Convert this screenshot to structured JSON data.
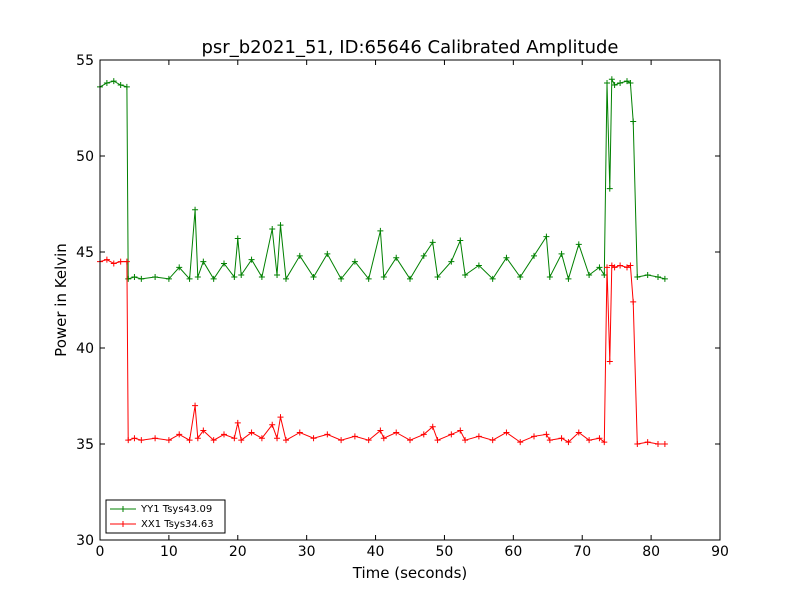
{
  "chart_data": {
    "type": "line",
    "title": "psr_b2021_51, ID:65646 Calibrated Amplitude",
    "xlabel": "Time (seconds)",
    "ylabel": "Power in Kelvin",
    "xlim": [
      0,
      90
    ],
    "ylim": [
      30,
      55
    ],
    "xticks": [
      0,
      10,
      20,
      30,
      40,
      50,
      60,
      70,
      80,
      90
    ],
    "yticks": [
      30,
      35,
      40,
      45,
      50,
      55
    ],
    "grid": false,
    "legend_position": "bottom-left",
    "marker": "+",
    "series": [
      {
        "name": "YY1 Tsys43.09",
        "color": "#008000",
        "x": [
          0,
          1,
          2,
          3,
          3.9,
          4.1,
          5,
          6,
          8,
          10,
          11.5,
          13,
          13.8,
          14.2,
          15,
          16.5,
          18,
          19.5,
          20,
          20.5,
          22,
          23.5,
          25,
          25.7,
          26.2,
          27,
          29,
          31,
          33,
          35,
          37,
          39,
          40.7,
          41.2,
          43,
          45,
          47,
          48.3,
          49,
          51,
          52.3,
          53,
          55,
          57,
          59,
          61,
          63,
          64.8,
          65.3,
          67,
          68,
          69.5,
          71,
          72.5,
          73.2,
          73.6,
          74.0,
          74.3,
          74.7,
          75.5,
          76.5,
          77.0,
          77.4,
          78,
          79.5,
          81,
          82
        ],
        "values": [
          53.6,
          53.8,
          53.9,
          53.7,
          53.6,
          43.6,
          43.7,
          43.6,
          43.7,
          43.6,
          44.2,
          43.6,
          47.2,
          43.7,
          44.5,
          43.6,
          44.4,
          43.7,
          45.7,
          43.8,
          44.6,
          43.7,
          46.2,
          43.8,
          46.4,
          43.6,
          44.8,
          43.7,
          44.9,
          43.6,
          44.5,
          43.6,
          46.1,
          43.7,
          44.7,
          43.6,
          44.8,
          45.5,
          43.7,
          44.5,
          45.6,
          43.8,
          44.3,
          43.6,
          44.7,
          43.7,
          44.8,
          45.8,
          43.7,
          44.9,
          43.6,
          45.4,
          43.8,
          44.2,
          43.8,
          53.8,
          48.3,
          54.0,
          53.7,
          53.8,
          53.9,
          53.8,
          51.8,
          43.7,
          43.8,
          43.7,
          43.6
        ]
      },
      {
        "name": "XX1 Tsys34.63",
        "color": "#ff0000",
        "x": [
          0,
          1,
          2,
          3,
          3.9,
          4.1,
          5,
          6,
          8,
          10,
          11.5,
          13,
          13.8,
          14.2,
          15,
          16.5,
          18,
          19.5,
          20,
          20.5,
          22,
          23.5,
          25,
          25.7,
          26.2,
          27,
          29,
          31,
          33,
          35,
          37,
          39,
          40.7,
          41.2,
          43,
          45,
          47,
          48.3,
          49,
          51,
          52.3,
          53,
          55,
          57,
          59,
          61,
          63,
          64.8,
          65.3,
          67,
          68,
          69.5,
          71,
          72.5,
          73.2,
          73.6,
          74.0,
          74.3,
          74.7,
          75.5,
          76.5,
          77.0,
          77.4,
          78,
          79.5,
          81,
          82
        ],
        "values": [
          44.5,
          44.6,
          44.4,
          44.5,
          44.5,
          35.2,
          35.3,
          35.2,
          35.3,
          35.2,
          35.5,
          35.2,
          37.0,
          35.3,
          35.7,
          35.2,
          35.5,
          35.3,
          36.1,
          35.2,
          35.6,
          35.3,
          36.0,
          35.3,
          36.4,
          35.2,
          35.6,
          35.3,
          35.5,
          35.2,
          35.4,
          35.2,
          35.7,
          35.3,
          35.6,
          35.2,
          35.5,
          35.9,
          35.2,
          35.5,
          35.7,
          35.2,
          35.4,
          35.2,
          35.6,
          35.1,
          35.4,
          35.5,
          35.2,
          35.3,
          35.1,
          35.6,
          35.2,
          35.3,
          35.1,
          44.2,
          39.3,
          44.3,
          44.2,
          44.3,
          44.2,
          44.3,
          42.4,
          35.0,
          35.1,
          35.0,
          35.0
        ]
      }
    ]
  }
}
